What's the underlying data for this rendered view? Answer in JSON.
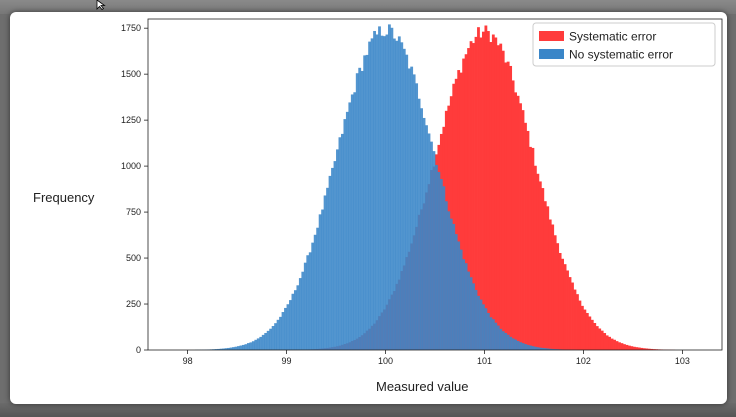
{
  "chart_data": {
    "type": "bar",
    "xlabel": "Measured value",
    "ylabel": "Frequency",
    "xlim": [
      97.6,
      103.4
    ],
    "ylim": [
      0,
      1800
    ],
    "xticks": [
      "98",
      "99",
      "100",
      "101",
      "102",
      "103"
    ],
    "yticks": [
      "0",
      "250",
      "500",
      "750",
      "1000",
      "1250",
      "1500",
      "1750"
    ],
    "legend_position": "top-right",
    "grid": false,
    "series": [
      {
        "name": "Systematic error",
        "color": "#ff3b3b",
        "opacity": 1.0,
        "mean": 101.0,
        "std": 0.5,
        "peak": 1730,
        "xmin": 98.9,
        "xmax": 103.0
      },
      {
        "name": "No systematic error",
        "color": "#3a86c8",
        "opacity": 0.88,
        "mean": 100.0,
        "std": 0.5,
        "peak": 1740,
        "xmin": 97.9,
        "xmax": 102.1
      }
    ]
  }
}
